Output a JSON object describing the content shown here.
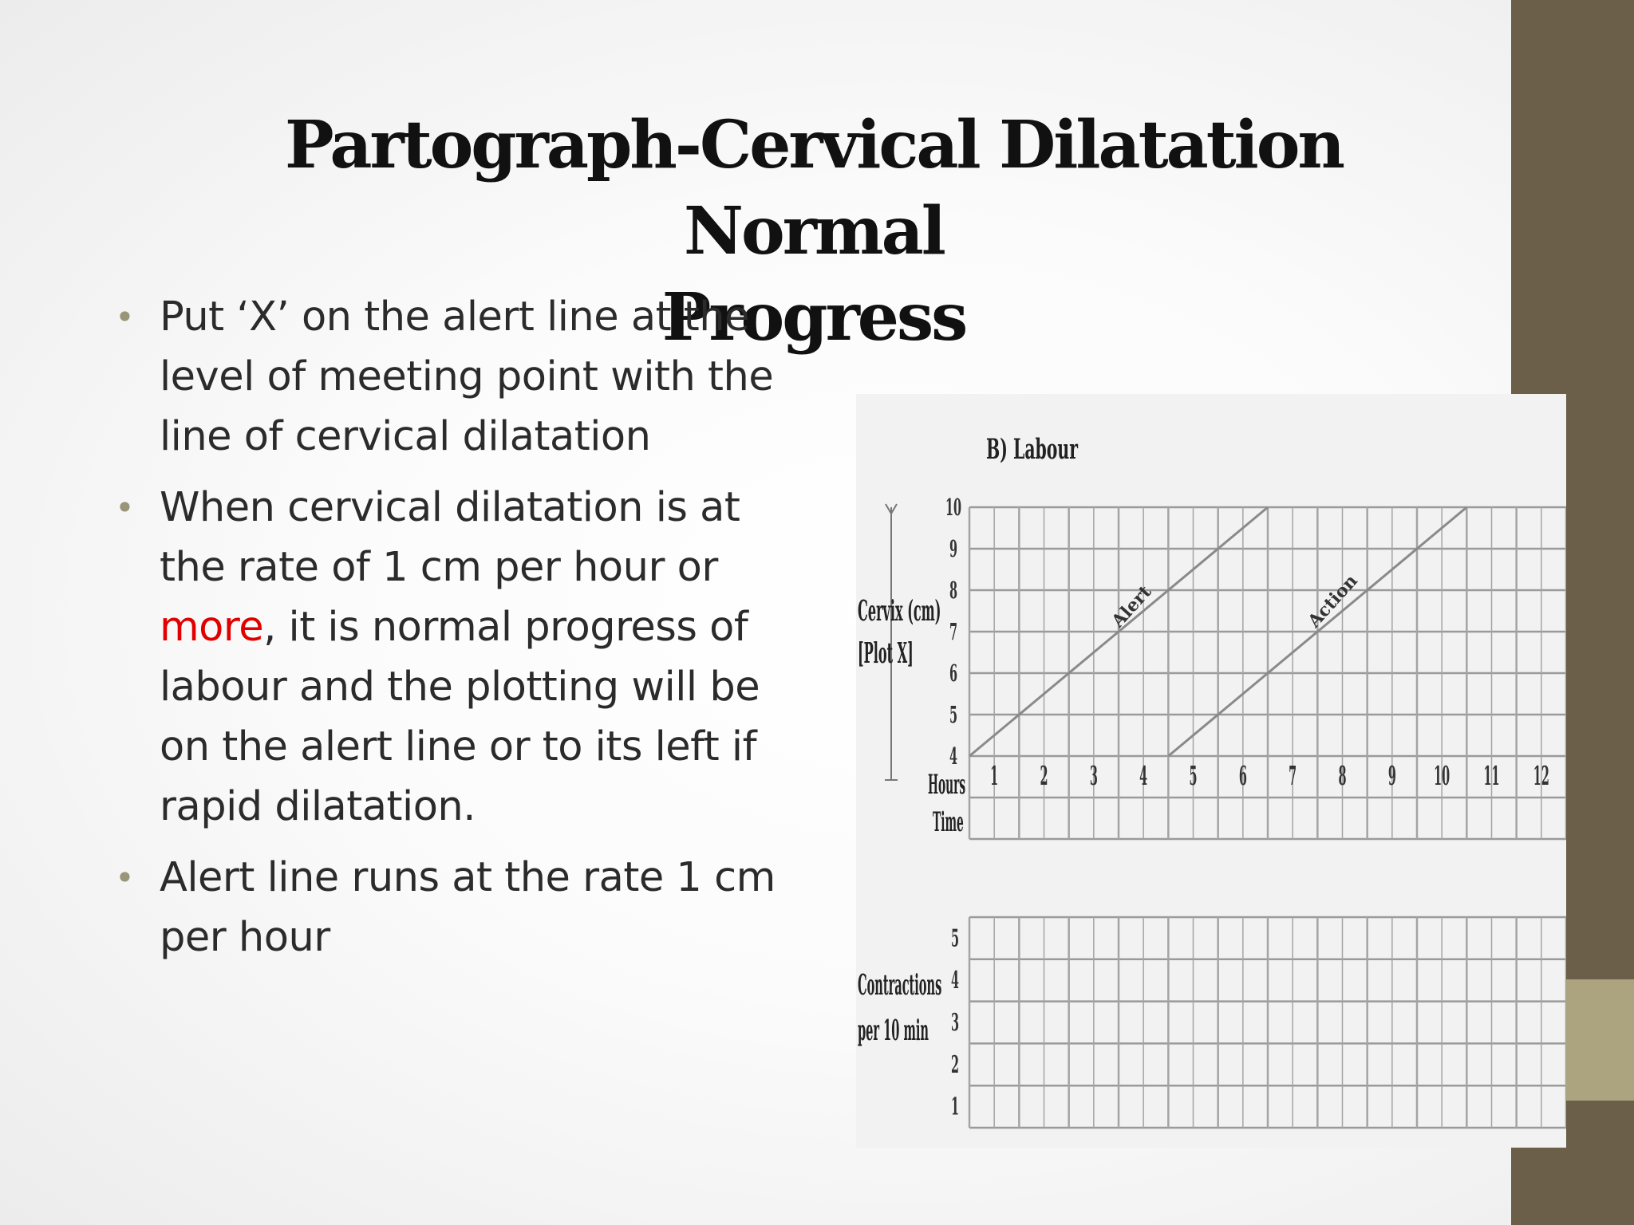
{
  "slide": {
    "title_line1": "Partograph-Cervical Dilatation Normal",
    "title_line2": "Progress",
    "bullets": {
      "b1": "Put ‘X’ on the alert line at the level of meeting point with the line of cervical dilatation",
      "b2_pre": "When cervical dilatation is at the rate of 1 cm per hour or ",
      "b2_highlight": "more",
      "b2_post": ", it is normal progress of labour and the plotting will be on the alert line or to its left if rapid dilatation.",
      "b3": "Alert line runs at the rate 1 cm per hour"
    },
    "colors": {
      "sidebar": "#6b5f49",
      "sidebar_accent": "#aba47f",
      "bullet": "#9b9577",
      "highlight": "#e00000"
    }
  },
  "figure": {
    "heading": "B) Labour",
    "cervix_label_1": "Cervix (cm)",
    "cervix_label_2": "[Plot X]",
    "hours_label": "Hours",
    "time_label": "Time",
    "contractions_label_1": "Contractions",
    "contractions_label_2": "per 10 min",
    "alert_label": "Alert",
    "action_label": "Action",
    "cervix_ticks": [
      "4",
      "5",
      "6",
      "7",
      "8",
      "9",
      "10"
    ],
    "hour_ticks": [
      "1",
      "2",
      "3",
      "4",
      "5",
      "6",
      "7",
      "8",
      "9",
      "10",
      "11",
      "12"
    ],
    "contraction_ticks": [
      "1",
      "2",
      "3",
      "4",
      "5"
    ]
  },
  "chart_data": {
    "type": "line",
    "title": "B) Labour",
    "ylabel": "Cervix (cm) [Plot X]",
    "xlabel": "Hours",
    "ylim": [
      4,
      10
    ],
    "xlim": [
      0,
      12
    ],
    "grid": true,
    "series": [
      {
        "name": "Alert",
        "x": [
          0,
          6
        ],
        "y": [
          4,
          10
        ]
      },
      {
        "name": "Action",
        "x": [
          4,
          10
        ],
        "y": [
          4,
          10
        ]
      }
    ]
  }
}
